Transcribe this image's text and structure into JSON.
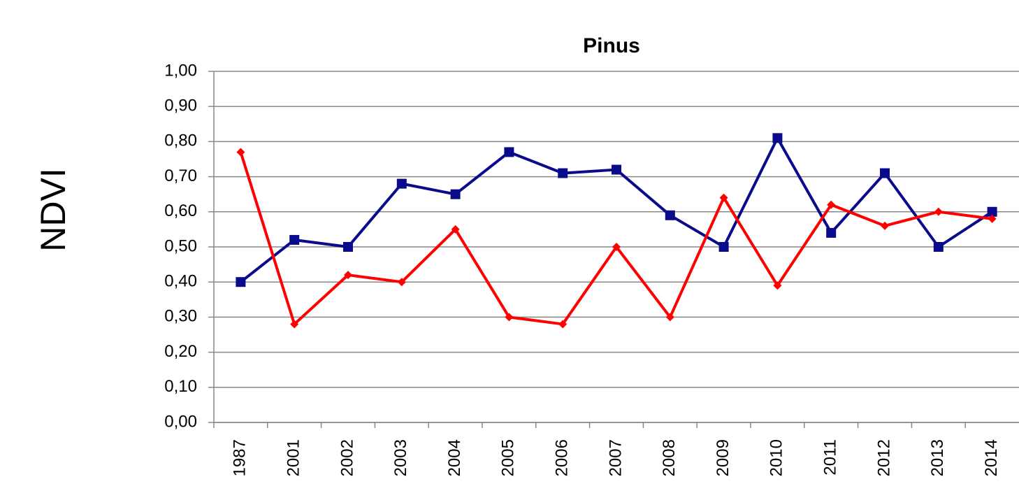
{
  "chart_data": {
    "type": "line",
    "title": "Pinus",
    "ylabel": "NDVI",
    "categories": [
      "1987",
      "2001",
      "2002",
      "2003",
      "2004",
      "2005",
      "2006",
      "2007",
      "2008",
      "2009",
      "2010",
      "2011",
      "2012",
      "2013",
      "2014"
    ],
    "series": [
      {
        "color": "#0a0a8c",
        "marker": "square",
        "values": [
          0.4,
          0.52,
          0.5,
          0.68,
          0.65,
          0.77,
          0.71,
          0.72,
          0.59,
          0.5,
          0.81,
          0.54,
          0.71,
          0.5,
          0.6
        ]
      },
      {
        "color": "#ff0000",
        "marker": "diamond",
        "values": [
          0.77,
          0.28,
          0.42,
          0.4,
          0.55,
          0.3,
          0.28,
          0.5,
          0.3,
          0.64,
          0.39,
          0.62,
          0.56,
          0.6,
          0.58
        ]
      }
    ],
    "ylim": [
      0,
      1
    ],
    "yticks": [
      {
        "value": 0,
        "label": "0,00"
      },
      {
        "value": 0.1,
        "label": "0,10"
      },
      {
        "value": 0.2,
        "label": "0,20"
      },
      {
        "value": 0.3,
        "label": "0,30"
      },
      {
        "value": 0.4,
        "label": "0,40"
      },
      {
        "value": 0.5,
        "label": "0,50"
      },
      {
        "value": 0.6,
        "label": "0,60"
      },
      {
        "value": 0.7,
        "label": "0,70"
      },
      {
        "value": 0.8,
        "label": "0,80"
      },
      {
        "value": 0.9,
        "label": "0,90"
      },
      {
        "value": 1,
        "label": "1,00"
      }
    ],
    "grid": true
  }
}
